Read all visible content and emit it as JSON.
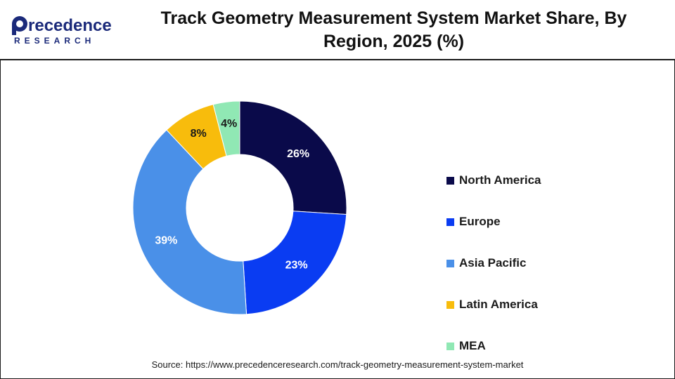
{
  "logo": {
    "name_top": "recedence",
    "name_initial": "P",
    "name_bottom": "RESEARCH"
  },
  "title": {
    "line1": "Track Geometry Measurement System Market Share, By",
    "line2": "Region, 2025 (%)"
  },
  "chart_data": {
    "type": "donut",
    "title": "Track Geometry Measurement System Market Share, By Region, 2025 (%)",
    "categories": [
      "North America",
      "Europe",
      "Asia Pacific",
      "Latin America",
      "MEA"
    ],
    "values": [
      26,
      23,
      39,
      8,
      4
    ],
    "labels": [
      "26%",
      "23%",
      "39%",
      "8%",
      "4%"
    ],
    "colors": [
      "#0a0a4a",
      "#0a3cf2",
      "#4a90e8",
      "#f8bc0c",
      "#90e8b4"
    ],
    "label_colors": [
      "#ffffff",
      "#ffffff",
      "#ffffff",
      "#1a1a1a",
      "#1a1a1a"
    ],
    "legend_position": "right"
  },
  "source": "Source: https://www.precedenceresearch.com/track-geometry-measurement-system-market"
}
